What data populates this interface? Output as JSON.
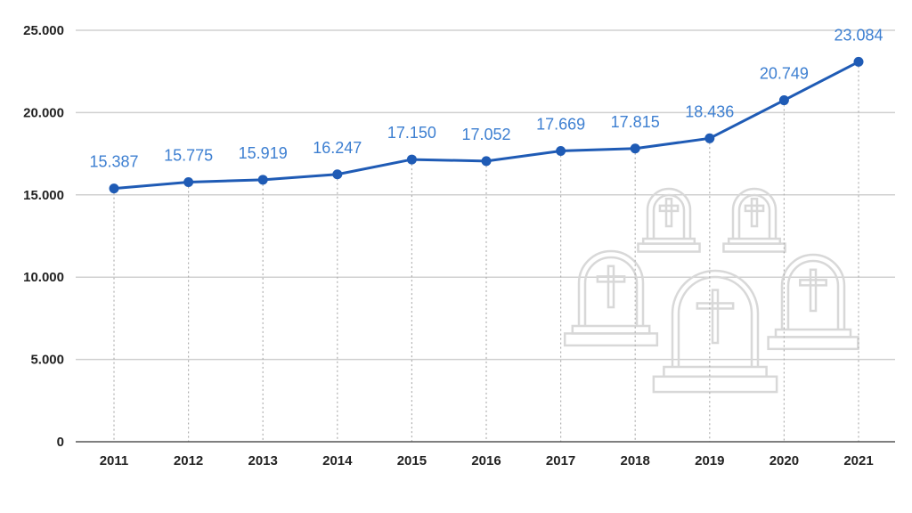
{
  "chart_data": {
    "type": "line",
    "title": "",
    "xlabel": "",
    "ylabel": "",
    "categories": [
      "2011",
      "2012",
      "2013",
      "2014",
      "2015",
      "2016",
      "2017",
      "2018",
      "2019",
      "2020",
      "2021"
    ],
    "series": [
      {
        "values": [
          15387,
          15775,
          15919,
          16247,
          17150,
          17052,
          17669,
          17815,
          18436,
          20749,
          23084
        ],
        "data_labels": [
          "15.387",
          "15.775",
          "15.919",
          "16.247",
          "17.150",
          "17.052",
          "17.669",
          "17.815",
          "18.436",
          "20.749",
          "23.084"
        ]
      }
    ],
    "ylim": [
      0,
      25000
    ],
    "yticks": [
      0,
      5000,
      10000,
      15000,
      20000,
      25000
    ],
    "ytick_labels": [
      "0",
      "5.000",
      "10.000",
      "15.000",
      "20.000",
      "25.000"
    ],
    "grid": true,
    "legend": "none",
    "colors": {
      "line": "#1f5bb5",
      "label": "#3d7fd1",
      "grid": "#d0d0d0",
      "drop_line": "#b0b0b0",
      "decoration": "#d8d8d8"
    },
    "decoration": "tombstones-icon"
  }
}
